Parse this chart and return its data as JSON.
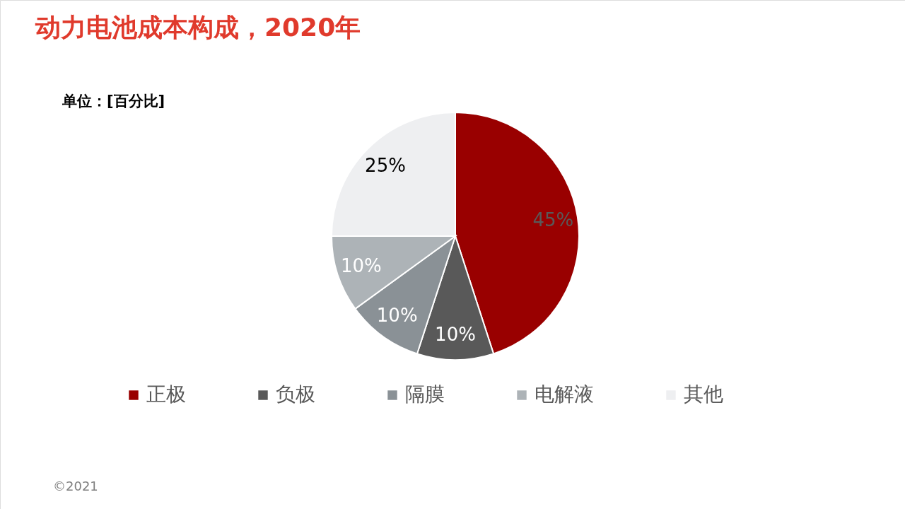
{
  "chart_data": {
    "type": "pie",
    "title": "动力电池成本构成，2020年",
    "subtitle": "单位：[百分比]",
    "categories": [
      "正极",
      "负极",
      "隔膜",
      "电解液",
      "其他"
    ],
    "values": [
      45,
      10,
      10,
      10,
      25
    ],
    "colors": [
      "#990000",
      "#595959",
      "#8a9196",
      "#adb3b7",
      "#eeeff1"
    ],
    "value_labels": [
      "45%",
      "10%",
      "10%",
      "10%",
      "25%"
    ],
    "legend": "bottom",
    "annotations": [
      "©2021"
    ]
  }
}
